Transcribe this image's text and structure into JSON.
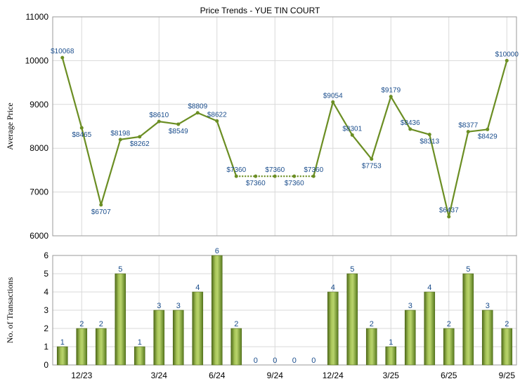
{
  "chart_data": [
    {
      "type": "line",
      "title": "Price Trends -  YUE TIN COURT",
      "ylabel": "Average Price",
      "ylim": [
        6000,
        11000
      ],
      "yticks": [
        "6000",
        "7000",
        "8000",
        "9000",
        "10000",
        "11000"
      ],
      "xticks": [
        "12/23",
        "3/24",
        "6/24",
        "9/24",
        "12/24",
        "3/25",
        "6/25",
        "9/25"
      ],
      "grid": true,
      "color": "#6b8e23",
      "series": [
        {
          "values": [
            10068,
            8465,
            6707,
            8198,
            8262,
            8610,
            8549,
            8809,
            8622,
            7360,
            7360,
            7360,
            7360,
            7360,
            9054,
            8301,
            7753,
            9179,
            8436,
            8313,
            6437,
            8377,
            8429,
            10000
          ],
          "labels": [
            "$10068",
            "$8465",
            "$6707",
            "$8198",
            "$8262",
            "$8610",
            "$8549",
            "$8809",
            "$8622",
            "$7360",
            "$7360",
            "$7360",
            "$7360",
            "$7360",
            "$9054",
            "$8301",
            "$7753",
            "$9179",
            "$8436",
            "$8313",
            "$6437",
            "$8377",
            "$8429",
            "$10000"
          ]
        }
      ]
    },
    {
      "type": "bar",
      "ylabel": "No. of Transactions",
      "ylim": [
        0,
        6
      ],
      "yticks": [
        "0",
        "1",
        "2",
        "3",
        "4",
        "5",
        "6"
      ],
      "xticks": [
        "12/23",
        "3/24",
        "6/24",
        "9/24",
        "12/24",
        "3/25",
        "6/25",
        "9/25"
      ],
      "grid": true,
      "color": "#7a9a2e",
      "series": [
        {
          "values": [
            1,
            2,
            2,
            5,
            1,
            3,
            3,
            4,
            6,
            2,
            0,
            0,
            0,
            0,
            4,
            5,
            2,
            1,
            3,
            4,
            2,
            5,
            3,
            2
          ],
          "labels": [
            "1",
            "2",
            "2",
            "5",
            "1",
            "3",
            "3",
            "4",
            "6",
            "2",
            "0",
            "0",
            "0",
            "0",
            "4",
            "5",
            "2",
            "1",
            "3",
            "4",
            "2",
            "5",
            "3",
            "2"
          ]
        }
      ]
    }
  ]
}
